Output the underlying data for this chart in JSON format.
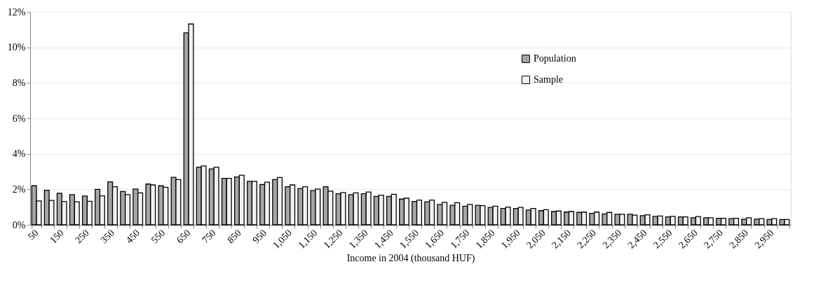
{
  "chart_data": {
    "type": "bar",
    "xlabel": "Income in 2004 (thousand HUF)",
    "categories": [
      "50",
      null,
      "150",
      null,
      "250",
      null,
      "350",
      null,
      "450",
      null,
      "550",
      null,
      "650",
      null,
      "750",
      null,
      "850",
      null,
      "950",
      null,
      "1,050",
      null,
      "1,150",
      null,
      "1,250",
      null,
      "1,350",
      null,
      "1,450",
      null,
      "1,550",
      null,
      "1,650",
      null,
      "1,750",
      null,
      "1,850",
      null,
      "1,950",
      null,
      "2,050",
      null,
      "2,150",
      null,
      "2,250",
      null,
      "2,350",
      null,
      "2,450",
      null,
      "2,550",
      null,
      "2,650",
      null,
      "2,750",
      null,
      "2,850",
      null,
      "2,950",
      null
    ],
    "series": [
      {
        "name": "Population",
        "color": "#a6a6a6",
        "values": [
          2.2,
          1.95,
          1.78,
          1.7,
          1.62,
          2.0,
          2.42,
          1.88,
          2.02,
          2.3,
          2.2,
          2.68,
          10.82,
          3.25,
          3.15,
          2.62,
          2.7,
          2.45,
          2.27,
          2.55,
          2.15,
          2.05,
          1.93,
          2.15,
          1.75,
          1.7,
          1.75,
          1.6,
          1.6,
          1.45,
          1.32,
          1.3,
          1.15,
          1.1,
          1.05,
          1.1,
          0.98,
          0.92,
          0.92,
          0.83,
          0.8,
          0.75,
          0.72,
          0.7,
          0.65,
          0.62,
          0.6,
          0.6,
          0.52,
          0.48,
          0.45,
          0.45,
          0.4,
          0.4,
          0.37,
          0.35,
          0.32,
          0.32,
          0.3,
          0.3
        ]
      },
      {
        "name": "Sample",
        "color": "#f2f2f2",
        "values": [
          1.35,
          1.38,
          1.32,
          1.3,
          1.33,
          1.63,
          2.15,
          1.7,
          1.8,
          2.25,
          2.12,
          2.55,
          11.32,
          3.32,
          3.25,
          2.62,
          2.8,
          2.45,
          2.4,
          2.67,
          2.25,
          2.15,
          2.02,
          1.9,
          1.82,
          1.8,
          1.85,
          1.67,
          1.72,
          1.5,
          1.4,
          1.4,
          1.27,
          1.25,
          1.15,
          1.08,
          1.05,
          1.0,
          0.98,
          0.92,
          0.85,
          0.78,
          0.75,
          0.72,
          0.72,
          0.7,
          0.6,
          0.55,
          0.57,
          0.5,
          0.48,
          0.45,
          0.47,
          0.4,
          0.37,
          0.37,
          0.4,
          0.35,
          0.35,
          0.3
        ]
      }
    ],
    "ylim": [
      0,
      12
    ],
    "yticks": [
      {
        "value": 0,
        "label": "0%"
      },
      {
        "value": 2,
        "label": "2%"
      },
      {
        "value": 4,
        "label": "4%"
      },
      {
        "value": 6,
        "label": "6%"
      },
      {
        "value": 8,
        "label": "8%"
      },
      {
        "value": 10,
        "label": "10%"
      },
      {
        "value": 12,
        "label": "12%"
      }
    ],
    "grid": "y",
    "legend": "top right"
  }
}
